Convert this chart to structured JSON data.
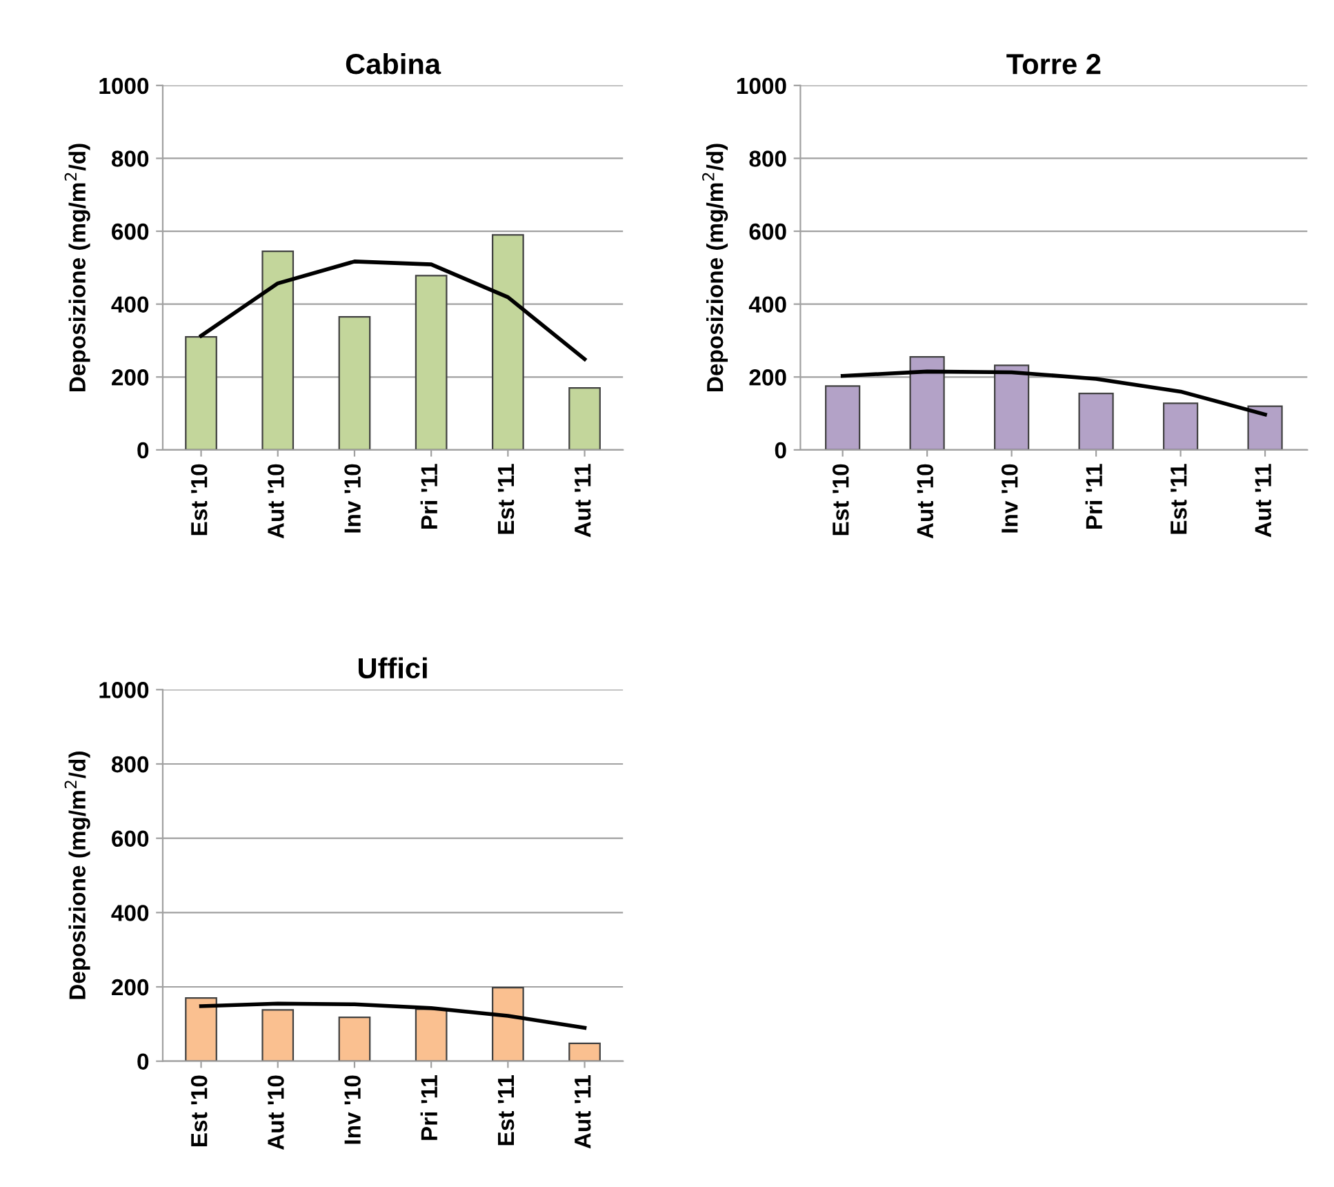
{
  "chart_data": [
    {
      "type": "bar",
      "title": "Cabina",
      "ylabel": "Deposizione (mg/m$^{2}$/d)",
      "categories": [
        "Est '10",
        "Aut '10",
        "Inv '10",
        "Pri '11",
        "Est '11",
        "Aut '11"
      ],
      "ylim": [
        0,
        1000
      ],
      "yticks": [
        0,
        200,
        400,
        600,
        800,
        1000
      ],
      "grid": "y",
      "series": [
        {
          "color": "#c3d69b",
          "values": [
            310,
            545,
            365,
            478,
            590,
            170
          ]
        },
        {
          "type": "line",
          "color": "#000000",
          "values": [
            313,
            457,
            517,
            509,
            419,
            249
          ]
        }
      ]
    },
    {
      "type": "bar",
      "title": "Torre 2",
      "ylabel": "Deposizione (mg/m$^{2}$/d)",
      "categories": [
        "Est '10",
        "Aut '10",
        "Inv '10",
        "Pri '11",
        "Est '11",
        "Aut '11"
      ],
      "ylim": [
        0,
        1000
      ],
      "yticks": [
        0,
        200,
        400,
        600,
        800,
        1000
      ],
      "grid": "y",
      "series": [
        {
          "color": "#b3a2c7",
          "values": [
            175,
            255,
            232,
            155,
            128,
            120
          ]
        },
        {
          "type": "line",
          "color": "#000000",
          "values": [
            203,
            215,
            213,
            195,
            160,
            97
          ]
        }
      ]
    },
    {
      "type": "bar",
      "title": "Uffici",
      "ylabel": "Deposizione (mg/m$^{2}$/d)",
      "categories": [
        "Est '10",
        "Aut '10",
        "Inv '10",
        "Pri '11",
        "Est '11",
        "Aut '11"
      ],
      "ylim": [
        0,
        1000
      ],
      "yticks": [
        0,
        200,
        400,
        600,
        800,
        1000
      ],
      "grid": "y",
      "series": [
        {
          "color": "#fac090",
          "values": [
            170,
            138,
            118,
            140,
            198,
            48
          ]
        },
        {
          "type": "line",
          "color": "#000000",
          "values": [
            148,
            155,
            153,
            143,
            122,
            90
          ]
        }
      ]
    }
  ]
}
